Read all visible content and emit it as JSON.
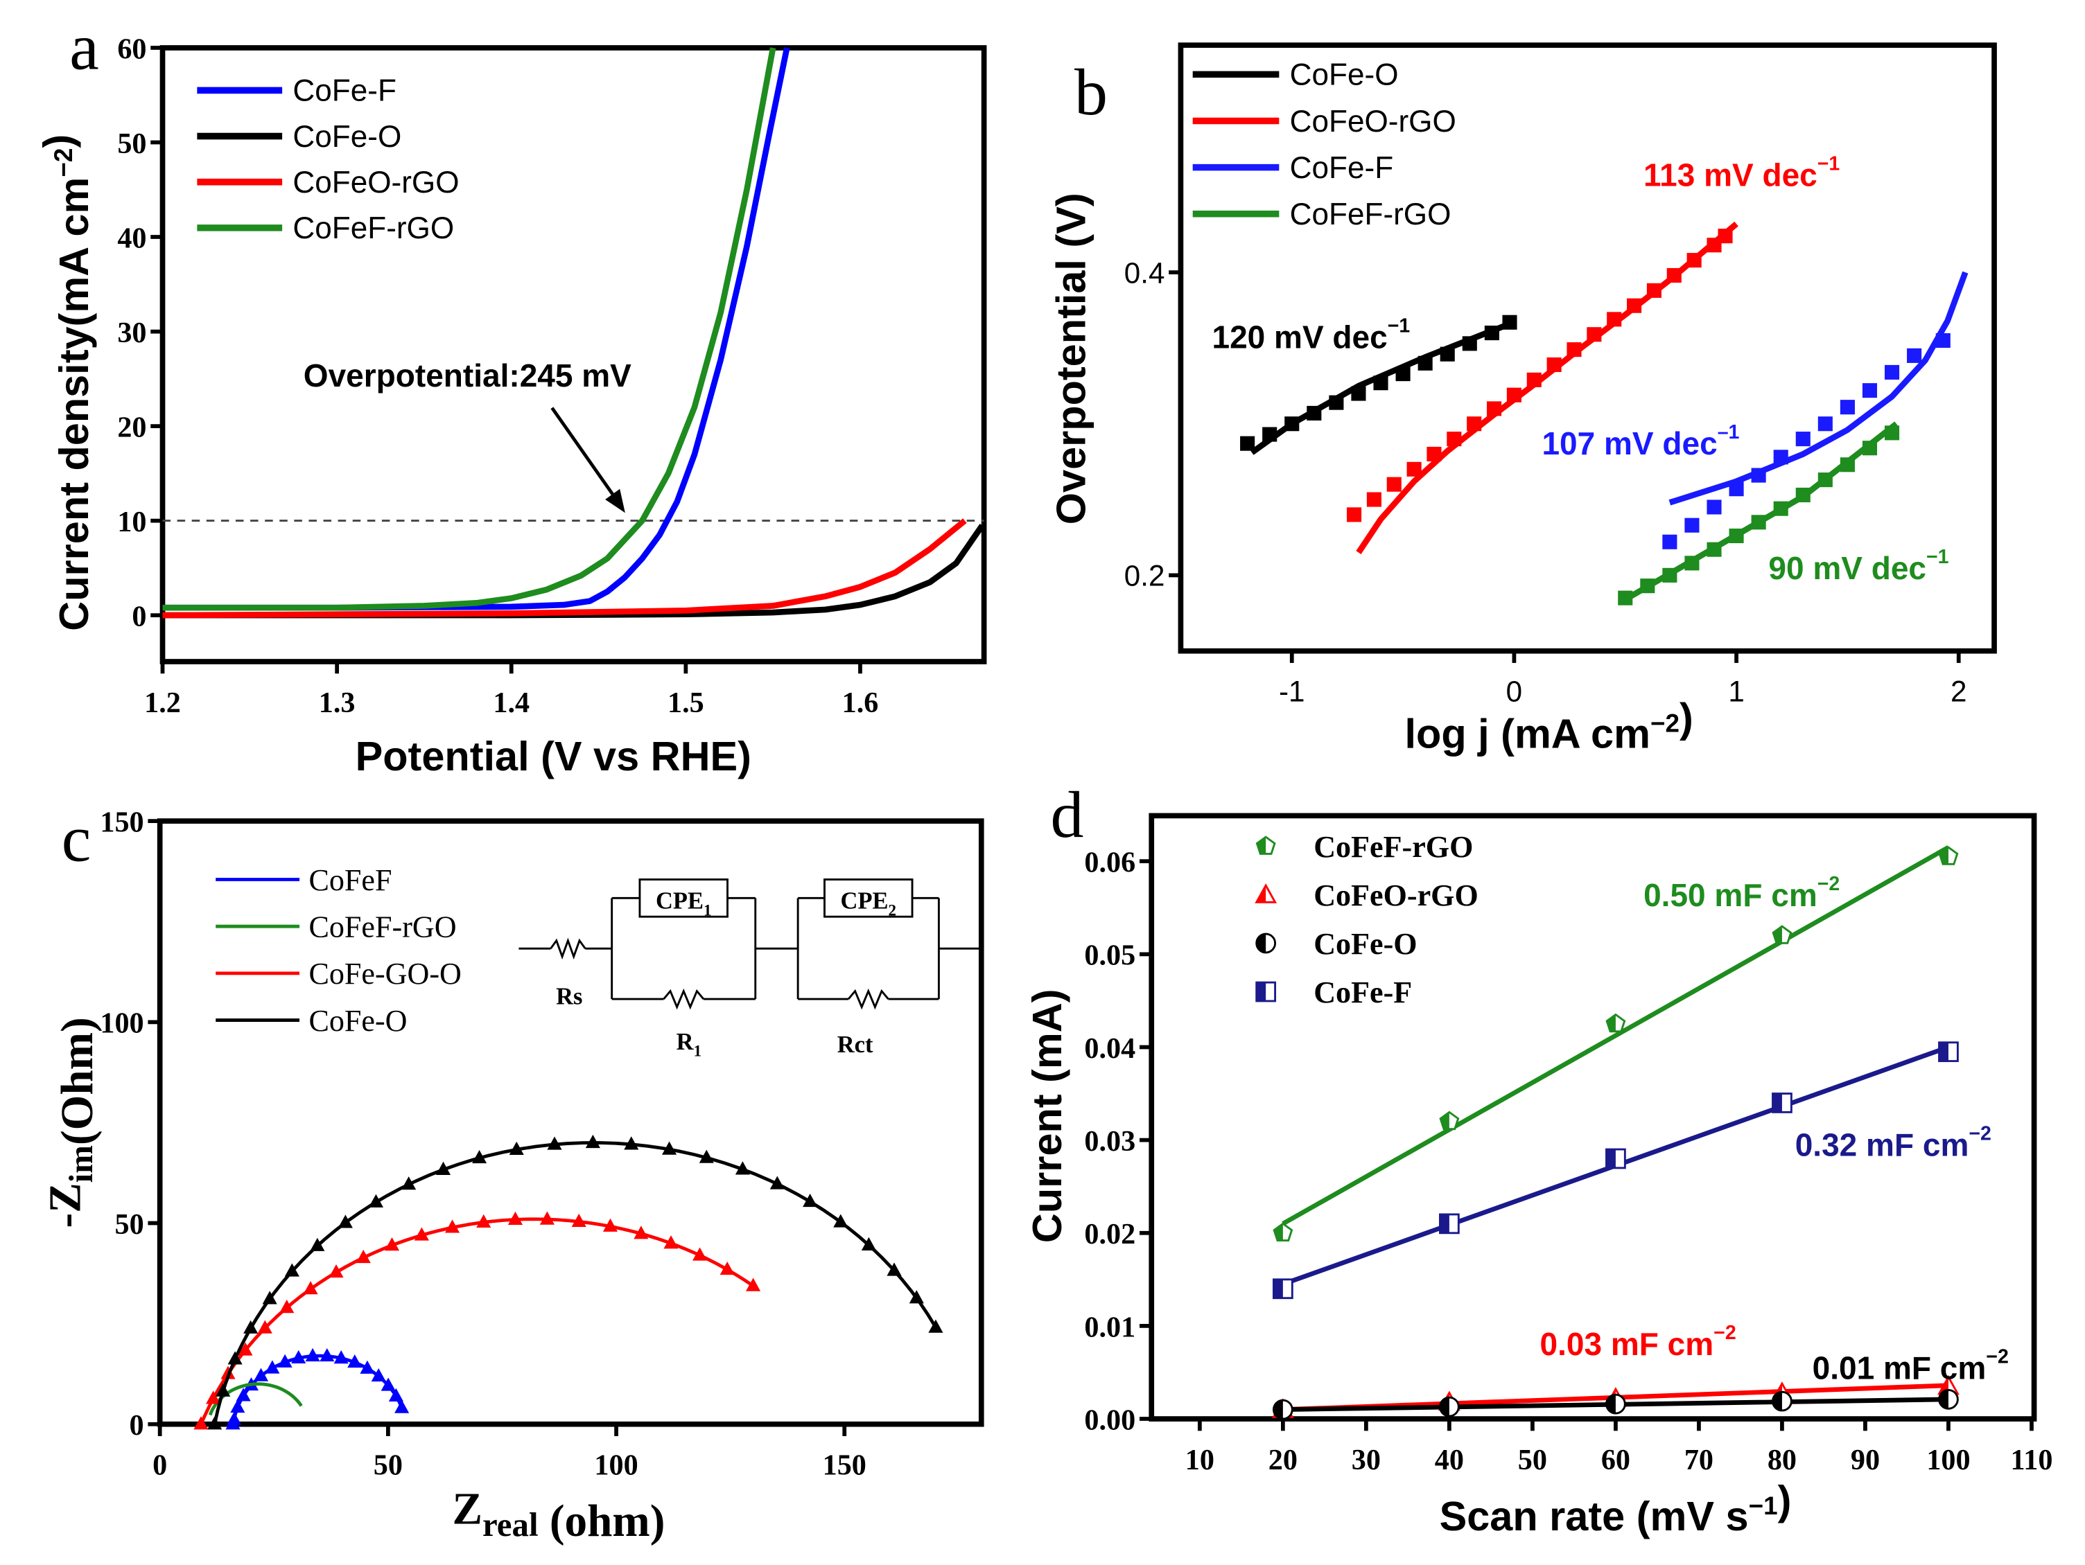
{
  "chart_data": [
    {
      "panel": "a",
      "type": "line",
      "xlabel": {
        "text": "Potential (V vs RHE)"
      },
      "ylabel": {
        "text": "Current density(mA cm",
        "sup": "−2",
        "after": ")"
      },
      "xlim": [
        1.2,
        1.671
      ],
      "ylim": [
        -4.9,
        60
      ],
      "xticks": [
        "1.2",
        "1.3",
        "1.4",
        "1.5",
        "1.6"
      ],
      "yticks": [
        "0",
        "10",
        "20",
        "30",
        "40",
        "50",
        "60"
      ],
      "legend_position": "top-left",
      "annotation": "Overpotential:245 mV",
      "reference_line_y": 10,
      "series": [
        {
          "name": "CoFe-F",
          "color": "#0000ff",
          "x": [
            1.2,
            1.3,
            1.4,
            1.43,
            1.445,
            1.455,
            1.465,
            1.475,
            1.485,
            1.495,
            1.505,
            1.52,
            1.535,
            1.548,
            1.558
          ],
          "y": [
            0.8,
            0.8,
            0.9,
            1.1,
            1.5,
            2.5,
            4,
            6,
            8.5,
            12,
            17,
            27,
            39,
            51,
            60
          ]
        },
        {
          "name": "CoFe-O",
          "color": "#000000",
          "x": [
            1.2,
            1.4,
            1.5,
            1.55,
            1.58,
            1.6,
            1.62,
            1.64,
            1.655,
            1.67
          ],
          "y": [
            0,
            0,
            0.1,
            0.3,
            0.6,
            1.1,
            2,
            3.5,
            5.5,
            9.5
          ]
        },
        {
          "name": "CoFeO-rGO",
          "color": "#ff0000",
          "x": [
            1.2,
            1.4,
            1.5,
            1.55,
            1.58,
            1.6,
            1.62,
            1.64,
            1.66
          ],
          "y": [
            0,
            0.2,
            0.5,
            1,
            2,
            3,
            4.5,
            7,
            10
          ]
        },
        {
          "name": "CoFeF-rGO",
          "color": "#1e8c1e",
          "x": [
            1.2,
            1.3,
            1.35,
            1.38,
            1.4,
            1.42,
            1.44,
            1.455,
            1.465,
            1.475,
            1.49,
            1.505,
            1.52,
            1.535,
            1.55
          ],
          "y": [
            0.8,
            0.8,
            1.0,
            1.3,
            1.8,
            2.7,
            4.2,
            6,
            8,
            10,
            15,
            22,
            32,
            45,
            60
          ]
        }
      ]
    },
    {
      "panel": "b",
      "type": "scatter",
      "xlabel": {
        "text": "log j (mA cm",
        "sup": "−2",
        "after": ")"
      },
      "ylabel": {
        "text": "Overpotential (V)"
      },
      "xlim": [
        -1.5,
        2.16
      ],
      "ylim": [
        0.15,
        0.55
      ],
      "xticks": [
        "-1",
        "0",
        "1",
        "2"
      ],
      "yticks": [
        "0.2",
        "0.4"
      ],
      "legend_position": "top-left",
      "series": [
        {
          "name": "CoFe-O",
          "color": "#000000",
          "slope_label": {
            "text": "120 mV dec",
            "sup": "−1"
          },
          "x": [
            -1.2,
            -1.1,
            -1.0,
            -0.9,
            -0.8,
            -0.7,
            -0.6,
            -0.5,
            -0.4,
            -0.3,
            -0.2,
            -0.1,
            -0.02
          ],
          "y": [
            0.287,
            0.293,
            0.3,
            0.307,
            0.314,
            0.32,
            0.327,
            0.333,
            0.34,
            0.346,
            0.353,
            0.36,
            0.367
          ],
          "fit_x": [
            -1.18,
            -1.0,
            -0.7,
            -0.4,
            -0.02
          ],
          "fit_y": [
            0.281,
            0.3,
            0.325,
            0.344,
            0.366
          ]
        },
        {
          "name": "CoFeO-rGO",
          "color": "#ff0000",
          "slope_label": {
            "text": "113 mV dec",
            "sup": "−1"
          },
          "x": [
            -0.72,
            -0.63,
            -0.54,
            -0.45,
            -0.36,
            -0.27,
            -0.18,
            -0.09,
            0.0,
            0.09,
            0.18,
            0.27,
            0.36,
            0.45,
            0.54,
            0.63,
            0.72,
            0.81,
            0.9,
            0.95
          ],
          "y": [
            0.24,
            0.25,
            0.26,
            0.27,
            0.28,
            0.29,
            0.3,
            0.31,
            0.319,
            0.329,
            0.339,
            0.349,
            0.359,
            0.369,
            0.378,
            0.388,
            0.398,
            0.408,
            0.418,
            0.424
          ],
          "fit_x": [
            -0.7,
            -0.6,
            -0.45,
            -0.3,
            -0.1,
            0.1,
            0.3,
            0.5,
            0.7,
            1.0
          ],
          "fit_y": [
            0.215,
            0.237,
            0.262,
            0.282,
            0.305,
            0.327,
            0.35,
            0.372,
            0.395,
            0.432
          ]
        },
        {
          "name": "CoFe-F",
          "color": "#1a1aff",
          "slope_label": {
            "text": "107 mV dec",
            "sup": "–1"
          },
          "x": [
            0.7,
            0.8,
            0.9,
            1.0,
            1.1,
            1.2,
            1.3,
            1.4,
            1.5,
            1.6,
            1.7,
            1.8,
            1.93
          ],
          "y": [
            0.222,
            0.233,
            0.245,
            0.257,
            0.266,
            0.278,
            0.29,
            0.3,
            0.311,
            0.322,
            0.334,
            0.345,
            0.355
          ],
          "fit_x": [
            0.7,
            1.0,
            1.3,
            1.5,
            1.7,
            1.85,
            1.95,
            2.03
          ],
          "fit_y": [
            0.248,
            0.262,
            0.28,
            0.296,
            0.318,
            0.342,
            0.368,
            0.4
          ]
        },
        {
          "name": "CoFeF-rGO",
          "color": "#1e8c1e",
          "slope_label": {
            "text": "90 mV dec",
            "sup": "−1"
          },
          "x": [
            0.5,
            0.6,
            0.7,
            0.8,
            0.9,
            1.0,
            1.1,
            1.2,
            1.3,
            1.4,
            1.5,
            1.6,
            1.7
          ],
          "y": [
            0.185,
            0.193,
            0.2,
            0.208,
            0.217,
            0.226,
            0.235,
            0.244,
            0.253,
            0.263,
            0.273,
            0.284,
            0.294
          ],
          "fit_x": [
            0.5,
            0.9,
            1.3,
            1.72
          ],
          "fit_y": [
            0.184,
            0.218,
            0.252,
            0.3
          ]
        }
      ]
    },
    {
      "panel": "c",
      "type": "scatter",
      "xlabel": {
        "text": "Z",
        "sub": "real",
        "after": " (ohm)"
      },
      "ylabel": {
        "text": "-Z",
        "sub": "im",
        "after": "(Ohm)"
      },
      "xlim": [
        0,
        180
      ],
      "ylim": [
        0,
        150
      ],
      "xticks": [
        "0",
        "50",
        "100",
        "150"
      ],
      "yticks": [
        "0",
        "50",
        "100",
        "150"
      ],
      "legend_position": "top-left",
      "circuit": {
        "rs": "Rs",
        "cpe1": "CPE",
        "cpe1_sub": "1",
        "r1": "R",
        "r1_sub": "1",
        "cpe2": "CPE",
        "cpe2_sub": "2",
        "rct": "Rct"
      },
      "series": [
        {
          "name": "CoFeF",
          "color": "#0000ff",
          "fit": {
            "cx": 35,
            "cy": -2,
            "r": 19,
            "x_start": 16,
            "x_end": 53
          },
          "markers": 18
        },
        {
          "name": "CoFeF-rGO",
          "color": "#1e8c1e",
          "fit": {
            "cx": 21.5,
            "cy": -1,
            "r": 11,
            "x_start": 11,
            "x_end": 31
          },
          "markers": 0
        },
        {
          "name": "CoFe-GO-O",
          "color": "#ff0000",
          "fit": {
            "cx": 82,
            "cy": -26.7,
            "r": 77.7,
            "x_start": 9,
            "x_end": 130
          },
          "markers": 22
        },
        {
          "name": "CoFe-O",
          "color": "#000000",
          "fit": {
            "cx": 95,
            "cy": -14.2,
            "r": 84.2,
            "x_start": 12,
            "x_end": 170
          },
          "markers": 26
        }
      ]
    },
    {
      "panel": "d",
      "type": "scatter",
      "xlabel": {
        "text": "Scan rate (mV s",
        "sup": "−1",
        "after": ")"
      },
      "ylabel": {
        "text": "Current (mA)"
      },
      "xlim": [
        4.2,
        110.3
      ],
      "ylim": [
        0,
        0.0649
      ],
      "xticks": [
        "10",
        "20",
        "30",
        "40",
        "50",
        "60",
        "70",
        "80",
        "90",
        "100",
        "110"
      ],
      "yticks": [
        "0.00",
        "0.01",
        "0.02",
        "0.03",
        "0.04",
        "0.05",
        "0.06"
      ],
      "legend_position": "top-left",
      "series": [
        {
          "name": "CoFeF-rGO",
          "color": "#1e8c1e",
          "marker": "pentagon",
          "slope_label": {
            "text": "0.50 mF cm",
            "sup": "−2"
          },
          "x": [
            20,
            40,
            60,
            80,
            100
          ],
          "y": [
            0.02,
            0.032,
            0.0425,
            0.052,
            0.0605
          ],
          "fit_x": [
            20,
            100
          ],
          "fit_y": [
            0.021,
            0.0615
          ]
        },
        {
          "name": "CoFeO-rGO",
          "color": "#ff0000",
          "marker": "triangle",
          "slope_label": {
            "text": "0.03 mF cm",
            "sup": "−2"
          },
          "x": [
            20,
            40,
            60,
            80,
            100
          ],
          "y": [
            0.001,
            0.0018,
            0.0022,
            0.0028,
            0.0035
          ],
          "fit_x": [
            20,
            100
          ],
          "fit_y": [
            0.001,
            0.0036
          ]
        },
        {
          "name": "CoFe-O",
          "color": "#000000",
          "marker": "circle",
          "slope_label": {
            "text": "0.01 mF cm",
            "sup": "−2"
          },
          "x": [
            20,
            40,
            60,
            80,
            100
          ],
          "y": [
            0.001,
            0.0013,
            0.0016,
            0.0019,
            0.0021
          ],
          "fit_x": [
            20,
            100
          ],
          "fit_y": [
            0.001,
            0.0021
          ]
        },
        {
          "name": "CoFe-F",
          "color": "#1a1a8c",
          "marker": "square",
          "slope_label": {
            "text": "0.32 mF cm",
            "sup": "−2"
          },
          "x": [
            20,
            40,
            60,
            80,
            100
          ],
          "y": [
            0.014,
            0.021,
            0.028,
            0.034,
            0.0395
          ],
          "fit_x": [
            20,
            100
          ],
          "fit_y": [
            0.0145,
            0.04
          ]
        }
      ]
    }
  ],
  "panel_letters": [
    "a",
    "b",
    "c",
    "d"
  ]
}
